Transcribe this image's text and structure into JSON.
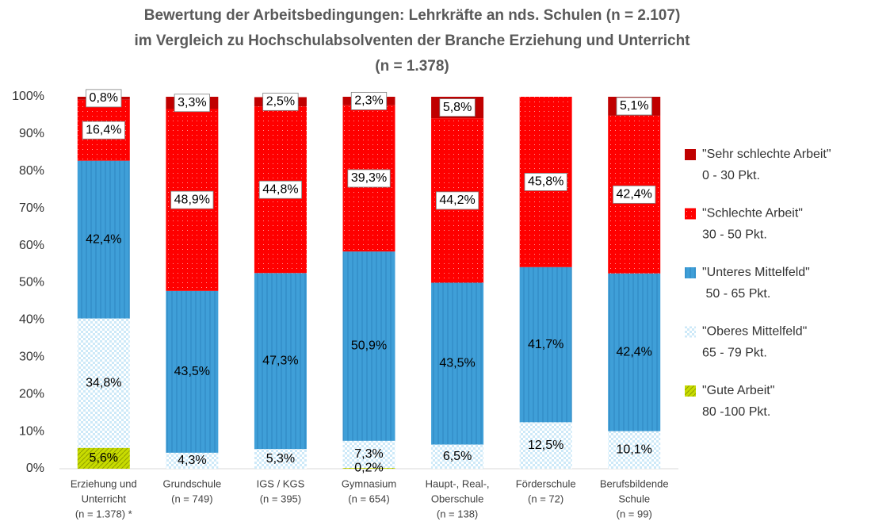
{
  "chart_data": {
    "type": "stacked_bar",
    "title": [
      "Bewertung der Arbeitsbedingungen:  Lehrkräfte an nds. Schulen (n = 2.107)",
      "im Vergleich zu Hochschulabsolventen der Branche Erziehung und Unterricht",
      "(n = 1.378)"
    ],
    "categories": [
      [
        "Erziehung und",
        "Unterricht",
        "(n = 1.378) *"
      ],
      [
        "Grundschule",
        "(n = 749)"
      ],
      [
        "IGS / KGS",
        "(n = 395)"
      ],
      [
        "Gymnasium",
        "(n = 654)"
      ],
      [
        "Haupt-, Real-,",
        "Oberschule",
        "(n = 138)"
      ],
      [
        "Förderschule",
        "(n = 72)"
      ],
      [
        "Berufsbildende",
        "Schule",
        "(n = 99)"
      ]
    ],
    "series": [
      {
        "name": "\"Gute Arbeit\"",
        "range": "80 -100 Pkt.",
        "color": "#c8dc00",
        "values": [
          5.6,
          0,
          0,
          0.2,
          0,
          0,
          0
        ],
        "value_labels": [
          "5,6%",
          null,
          null,
          "0,2%",
          null,
          null,
          null
        ]
      },
      {
        "name": "\"Oberes Mittelfeld\"",
        "range": "65 - 79 Pkt.",
        "color": "#cde9f8",
        "values": [
          34.8,
          4.3,
          5.3,
          7.3,
          6.5,
          12.5,
          10.1
        ],
        "value_labels": [
          "34,8%",
          "4,3%",
          "5,3%",
          "7,3%",
          "6,5%",
          "12,5%",
          "10,1%"
        ]
      },
      {
        "name": "\"Unteres Mittelfeld\"",
        "range": " 50 - 65 Pkt.",
        "color": "#3f9fd8",
        "values": [
          42.4,
          43.5,
          47.3,
          50.9,
          43.5,
          41.7,
          42.4
        ],
        "value_labels": [
          "42,4%",
          "43,5%",
          "47,3%",
          "50,9%",
          "43,5%",
          "41,7%",
          "42,4%"
        ]
      },
      {
        "name": "\"Schlechte Arbeit\"",
        "range": "30 - 50 Pkt.",
        "color": "#ff0000",
        "values": [
          16.4,
          48.9,
          44.8,
          39.3,
          44.2,
          45.8,
          42.4
        ],
        "value_labels": [
          "16,4%",
          "48,9%",
          "44,8%",
          "39,3%",
          "44,2%",
          "45,8%",
          "42,4%"
        ]
      },
      {
        "name": "\"Sehr schlechte Arbeit\"",
        "range": "0 - 30 Pkt.",
        "color": "#c00000",
        "values": [
          0.8,
          3.3,
          2.5,
          2.3,
          5.8,
          0,
          5.1
        ],
        "value_labels": [
          "0,8%",
          "3,3%",
          "2,5%",
          "2,3%",
          "5,8%",
          null,
          "5,1%"
        ]
      }
    ],
    "ylim": [
      0,
      100
    ],
    "yticks": [
      {
        "value": 0,
        "label": "0%"
      },
      {
        "value": 10,
        "label": "10%"
      },
      {
        "value": 20,
        "label": "20%"
      },
      {
        "value": 30,
        "label": "30%"
      },
      {
        "value": 40,
        "label": "40%"
      },
      {
        "value": 50,
        "label": "50%"
      },
      {
        "value": 60,
        "label": "60%"
      },
      {
        "value": 70,
        "label": "70%"
      },
      {
        "value": 80,
        "label": "80%"
      },
      {
        "value": 90,
        "label": "90%"
      },
      {
        "value": 100,
        "label": "100%"
      }
    ],
    "grid": false
  }
}
